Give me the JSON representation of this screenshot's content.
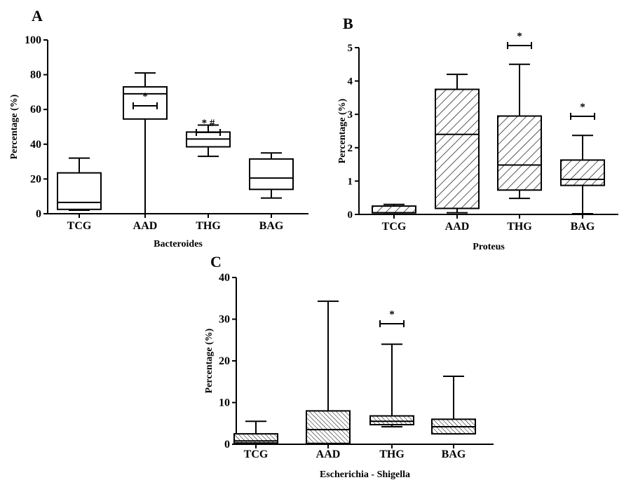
{
  "chart_data": [
    {
      "panel": "A",
      "type": "box",
      "xlabel": "Bacteroides",
      "ylabel": "Percentage (%)",
      "ylim": [
        0,
        100
      ],
      "yticks": [
        "0",
        "20",
        "40",
        "60",
        "80",
        "100"
      ],
      "fill": "white",
      "categories": [
        "TCG",
        "AAD",
        "THG",
        "BAG"
      ],
      "boxes": [
        {
          "min": 2,
          "q1": 2.5,
          "median": 6.5,
          "q3": 23.5,
          "max": 32,
          "annotation": ""
        },
        {
          "min": 0,
          "q1": 54.5,
          "median": 69,
          "q3": 73,
          "max": 81,
          "annotation": "*"
        },
        {
          "min": 33,
          "q1": 38.5,
          "median": 43,
          "q3": 47,
          "max": 51,
          "annotation": "*,#"
        },
        {
          "min": 9,
          "q1": 14,
          "median": 20.5,
          "q3": 31.5,
          "max": 35,
          "annotation": "#,$"
        }
      ]
    },
    {
      "panel": "B",
      "type": "box",
      "xlabel": "Proteus",
      "ylabel": "Percentage (%)",
      "ylim": [
        0,
        5
      ],
      "yticks": [
        "0",
        "1",
        "2",
        "3",
        "4",
        "5"
      ],
      "fill": "hatched-wide",
      "categories": [
        "TCG",
        "AAD",
        "THG",
        "BAG"
      ],
      "boxes": [
        {
          "min": 0.05,
          "q1": 0.05,
          "median": 0.05,
          "q3": 0.25,
          "max": 0.3,
          "annotation": ""
        },
        {
          "min": 0.05,
          "q1": 0.18,
          "median": 2.4,
          "q3": 3.75,
          "max": 4.2,
          "annotation": ""
        },
        {
          "min": 0.48,
          "q1": 0.73,
          "median": 1.48,
          "q3": 2.95,
          "max": 4.5,
          "annotation": "*"
        },
        {
          "min": 0.02,
          "q1": 0.87,
          "median": 1.05,
          "q3": 1.63,
          "max": 2.37,
          "annotation": "*"
        }
      ]
    },
    {
      "panel": "C",
      "type": "box",
      "xlabel": "Escherichia - Shigella",
      "ylabel": "Percentage (%)",
      "ylim": [
        0,
        40
      ],
      "yticks": [
        "0",
        "10",
        "20",
        "30",
        "40"
      ],
      "fill": "hatched-dense",
      "categories": [
        "TCG",
        "AAD",
        "THG",
        "BAG"
      ],
      "boxes": [
        {
          "min": 0.2,
          "q1": 0.3,
          "median": 0.8,
          "q3": 2.5,
          "max": 5.5,
          "annotation": ""
        },
        {
          "min": 0,
          "q1": 0.2,
          "median": 3.5,
          "q3": 8,
          "max": 34.3,
          "annotation": ""
        },
        {
          "min": 4.2,
          "q1": 4.7,
          "median": 5.5,
          "q3": 6.8,
          "max": 24,
          "annotation": "*"
        },
        {
          "min": 2.5,
          "q1": 2.5,
          "median": 4.2,
          "q3": 6,
          "max": 16.3,
          "annotation": ""
        }
      ]
    }
  ]
}
